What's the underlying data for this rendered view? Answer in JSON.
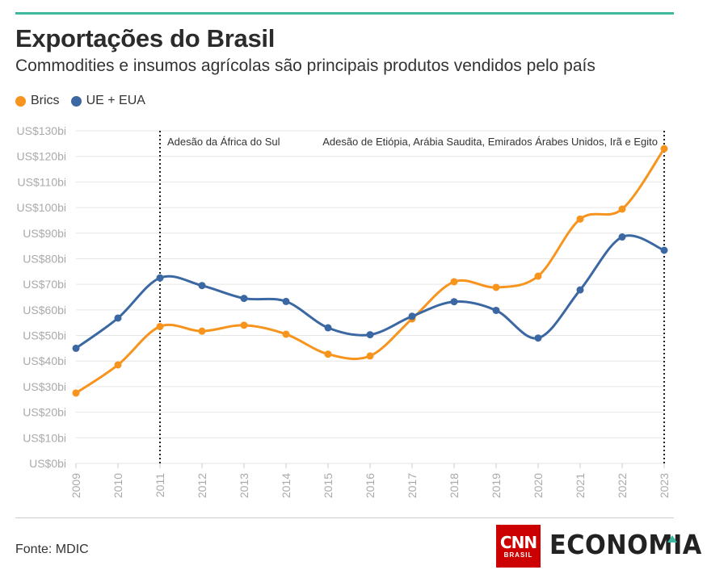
{
  "header": {
    "title": "Exportações do Brasil",
    "subtitle": "Commodities e insumos agrícolas são principais produtos vendidos pelo país"
  },
  "footer": {
    "source": "Fonte: MDIC",
    "logo_text": "CNN",
    "logo_subtext": "BRASIL",
    "section": "ECONOMIA"
  },
  "chart_data": {
    "type": "line",
    "title": "Exportações do Brasil",
    "x": [
      "2009",
      "2010",
      "2011",
      "2012",
      "2013",
      "2014",
      "2015",
      "2016",
      "2017",
      "2018",
      "2019",
      "2020",
      "2021",
      "2022",
      "2023"
    ],
    "series": [
      {
        "name": "Brics",
        "color": "#f7941d",
        "values": [
          27.5,
          38.5,
          53.5,
          51.7,
          54,
          50.5,
          42.7,
          42,
          56.5,
          71,
          68.8,
          73.2,
          95.5,
          99.4,
          123
        ]
      },
      {
        "name": "UE + EUA",
        "color": "#3b67a2",
        "values": [
          45,
          56.8,
          72.5,
          69.5,
          64.5,
          63.3,
          53,
          50.3,
          57.5,
          63.2,
          59.8,
          49,
          67.8,
          88.5,
          83.3
        ]
      }
    ],
    "ylim": [
      0,
      130
    ],
    "yticks": [
      0,
      10,
      20,
      30,
      40,
      50,
      60,
      70,
      80,
      90,
      100,
      110,
      120,
      130
    ],
    "ytick_labels": [
      "US$0bi",
      "US$10bi",
      "US$20bi",
      "US$30bi",
      "US$40bi",
      "US$50bi",
      "US$60bi",
      "US$70bi",
      "US$80bi",
      "US$90bi",
      "US$100bi",
      "US$110bi",
      "US$120bi",
      "US$130bi"
    ],
    "annotations": [
      {
        "x": "2011",
        "text": "Adesão da África do Sul",
        "align": "left"
      },
      {
        "x": "2023",
        "text": "Adesão de Etiópia, Arábia Saudita, Emirados Árabes Unidos, Irã e Egito",
        "align": "right"
      }
    ],
    "grid": true,
    "legend": "top-left"
  }
}
